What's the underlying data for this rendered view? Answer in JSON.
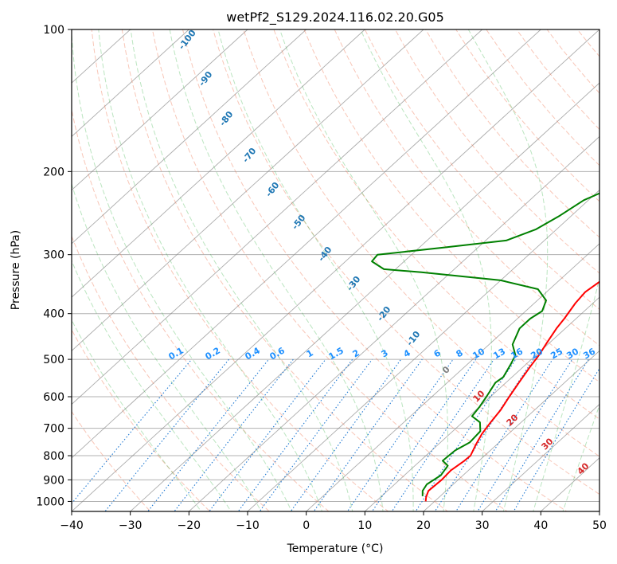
{
  "chart_data": {
    "type": "line",
    "title": "wetPf2_S129.2024.116.02.20.G05",
    "xlabel": "Temperature (°C)",
    "ylabel": "Pressure (hPa)",
    "xlim": [
      -40,
      50
    ],
    "ylim": [
      1050,
      100
    ],
    "y_scale": "log",
    "grid": true,
    "x_ticks": [
      "−40",
      "−30",
      "−20",
      "−10",
      "0",
      "10",
      "20",
      "30",
      "40",
      "50"
    ],
    "y_ticks": [
      "100",
      "200",
      "300",
      "400",
      "500",
      "600",
      "700",
      "800",
      "900",
      "1000"
    ],
    "series": [
      {
        "color": "#ff0000",
        "points": [
          [
            18.5,
            1000
          ],
          [
            17.8,
            980
          ],
          [
            17.0,
            950
          ],
          [
            17.2,
            900
          ],
          [
            17.0,
            860
          ],
          [
            17.5,
            820
          ],
          [
            17.6,
            800
          ],
          [
            16.5,
            760
          ],
          [
            15.5,
            720
          ],
          [
            14.8,
            680
          ],
          [
            14.2,
            640
          ],
          [
            13.2,
            600
          ],
          [
            12.2,
            560
          ],
          [
            11.2,
            520
          ],
          [
            10.5,
            490
          ],
          [
            9.5,
            460
          ],
          [
            8.5,
            430
          ],
          [
            8.0,
            410
          ],
          [
            7.0,
            380
          ],
          [
            6.6,
            360
          ],
          [
            7.2,
            340
          ],
          [
            6.8,
            320
          ],
          [
            5.5,
            295
          ],
          [
            3.2,
            270
          ],
          [
            1.5,
            250
          ],
          [
            0.0,
            230
          ],
          [
            -1.5,
            215
          ],
          [
            -1.8,
            205
          ],
          [
            -0.5,
            195
          ],
          [
            2.5,
            185
          ],
          [
            5.5,
            175
          ],
          [
            7.2,
            165
          ],
          [
            8.5,
            155
          ],
          [
            9.1,
            145
          ],
          [
            9.3,
            130
          ],
          [
            10.0,
            123
          ],
          [
            12.0,
            115
          ],
          [
            14.5,
            108
          ],
          [
            17.5,
            100
          ]
        ]
      },
      {
        "color": "#008000",
        "points": [
          [
            17.0,
            975
          ],
          [
            16.0,
            950
          ],
          [
            15.5,
            920
          ],
          [
            16.2,
            880
          ],
          [
            15.6,
            840
          ],
          [
            13.8,
            820
          ],
          [
            14.0,
            780
          ],
          [
            15.0,
            750
          ],
          [
            14.7,
            710
          ],
          [
            13.0,
            680
          ],
          [
            10.5,
            660
          ],
          [
            10.0,
            630
          ],
          [
            9.3,
            600
          ],
          [
            8.2,
            560
          ],
          [
            8.5,
            545
          ],
          [
            7.3,
            510
          ],
          [
            6.5,
            490
          ],
          [
            4.0,
            465
          ],
          [
            2.2,
            430
          ],
          [
            2.2,
            410
          ],
          [
            2.8,
            395
          ],
          [
            1.5,
            375
          ],
          [
            -2.0,
            355
          ],
          [
            -10.0,
            340
          ],
          [
            -25.0,
            327
          ],
          [
            -32.0,
            322
          ],
          [
            -35.5,
            310
          ],
          [
            -35.8,
            300
          ],
          [
            -26.0,
            290
          ],
          [
            -16.5,
            280
          ],
          [
            -13.5,
            265
          ],
          [
            -12.0,
            248
          ],
          [
            -10.8,
            230
          ],
          [
            -8.0,
            215
          ],
          [
            -6.5,
            205
          ],
          [
            -7.0,
            195
          ],
          [
            -9.5,
            187
          ],
          [
            -12.5,
            182
          ],
          [
            -13.0,
            175
          ],
          [
            -12.0,
            168
          ],
          [
            -9.5,
            160
          ],
          [
            -6.0,
            148
          ],
          [
            -4.5,
            135
          ],
          [
            -3.0,
            123
          ],
          [
            -1.0,
            113
          ],
          [
            0.5,
            106
          ],
          [
            1.0,
            100
          ]
        ]
      }
    ],
    "background_lines": {
      "dry_adiabat_color": "#f08060",
      "moist_adiabat_color": "#3cb44b",
      "mixing_ratio_color": "#1e78d2",
      "isotherm_color": "#888888"
    },
    "moist_adiabat_labels": [
      "-100",
      "-90",
      "-80",
      "-70",
      "-60",
      "-50",
      "-40",
      "-30",
      "-20",
      "-10"
    ],
    "mixing_ratio_labels": [
      "0.1",
      "0.2",
      "0.4",
      "0.6",
      "1",
      "1.5",
      "2",
      "3",
      "4",
      "6",
      "8",
      "10",
      "13",
      "16",
      "20",
      "25",
      "30",
      "36"
    ],
    "zero_label": "0",
    "dry_labels": [
      "10",
      "20",
      "30",
      "40"
    ],
    "label_colors": {
      "moist": "#1f77b4",
      "mixing": "#1e90ff",
      "dry": "#d62728",
      "zero": "#808080"
    }
  }
}
